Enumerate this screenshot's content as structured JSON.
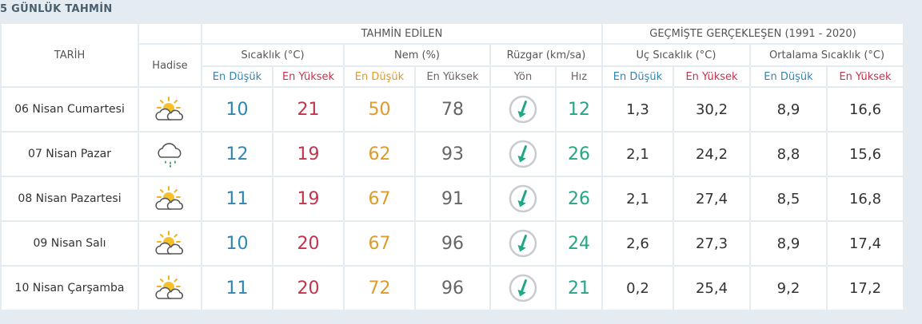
{
  "title": "5 GÜNLÜK TAHMİN",
  "headers": {
    "date": "TARİH",
    "hadise": "Hadise",
    "forecast": "TAHMİN EDİLEN",
    "history": "GEÇMİŞTE GERÇEKLEŞEN (1991 - 2020)",
    "temp": "Sıcaklık (°C)",
    "humidity": "Nem (%)",
    "wind": "Rüzgar (km/sa)",
    "extreme_temp": "Uç Sıcaklık (°C)",
    "avg_temp": "Ortalama Sıcaklık (°C)",
    "min": "En Düşük",
    "max": "En Yüksek",
    "direction": "Yön",
    "speed": "Hız"
  },
  "colors": {
    "min": "#2f86b4",
    "max": "#c2344c",
    "humidity_min": "#de9a2c",
    "speed": "#24a585"
  },
  "days": [
    {
      "date": "06 Nisan Cumartesi",
      "icon": "partly-cloudy-icon",
      "t_min": "10",
      "t_max": "21",
      "h_min": "50",
      "h_max": "78",
      "wind_dir": "wind-direction-icon",
      "wind_speed": "12",
      "ext_min": "1,3",
      "ext_max": "30,2",
      "avg_min": "8,9",
      "avg_max": "16,6"
    },
    {
      "date": "07 Nisan Pazar",
      "icon": "rain-cloud-icon",
      "t_min": "12",
      "t_max": "19",
      "h_min": "62",
      "h_max": "93",
      "wind_dir": "wind-direction-icon",
      "wind_speed": "26",
      "ext_min": "2,1",
      "ext_max": "24,2",
      "avg_min": "8,8",
      "avg_max": "15,6"
    },
    {
      "date": "08 Nisan Pazartesi",
      "icon": "partly-cloudy-icon",
      "t_min": "11",
      "t_max": "19",
      "h_min": "67",
      "h_max": "91",
      "wind_dir": "wind-direction-icon",
      "wind_speed": "26",
      "ext_min": "2,1",
      "ext_max": "27,4",
      "avg_min": "8,5",
      "avg_max": "16,8"
    },
    {
      "date": "09 Nisan Salı",
      "icon": "partly-cloudy-icon",
      "t_min": "10",
      "t_max": "20",
      "h_min": "67",
      "h_max": "96",
      "wind_dir": "wind-direction-icon",
      "wind_speed": "24",
      "ext_min": "2,6",
      "ext_max": "27,3",
      "avg_min": "8,9",
      "avg_max": "17,4"
    },
    {
      "date": "10 Nisan Çarşamba",
      "icon": "partly-cloudy-icon",
      "t_min": "11",
      "t_max": "20",
      "h_min": "72",
      "h_max": "96",
      "wind_dir": "wind-direction-icon",
      "wind_speed": "21",
      "ext_min": "0,2",
      "ext_max": "25,4",
      "avg_min": "9,2",
      "avg_max": "17,2"
    }
  ]
}
